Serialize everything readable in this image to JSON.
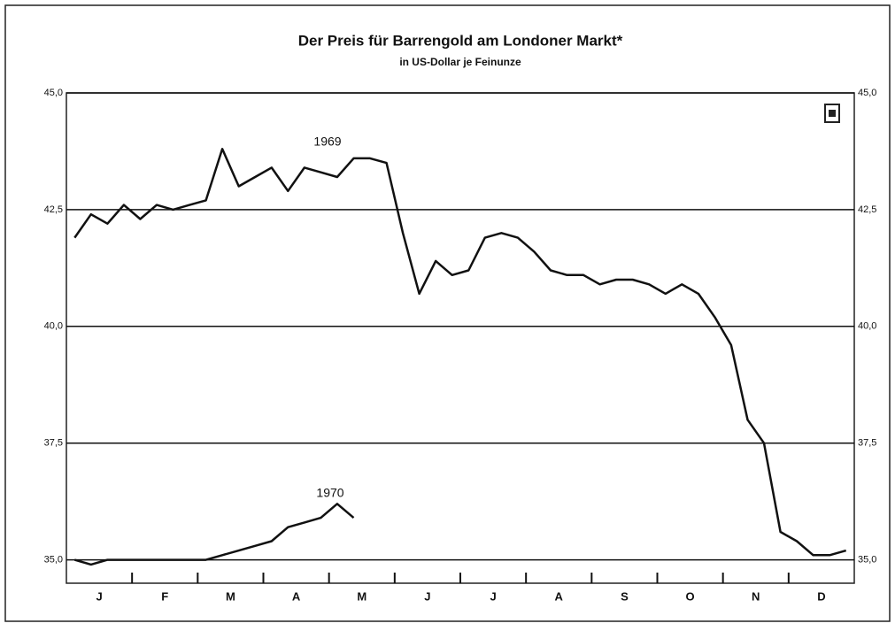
{
  "chart_data": {
    "type": "line",
    "title": "Der Preis für Barrengold am Londoner Markt*",
    "subtitle": "in US-Dollar je Feinunze",
    "annotations": [
      "1969",
      "1970"
    ],
    "categories": [
      "J",
      null,
      null,
      null,
      "F",
      null,
      null,
      null,
      "M",
      null,
      null,
      null,
      "A",
      null,
      null,
      null,
      "M",
      null,
      null,
      null,
      "J",
      null,
      null,
      null,
      "J",
      null,
      null,
      null,
      "A",
      null,
      null,
      null,
      "S",
      null,
      null,
      null,
      "O",
      null,
      null,
      null,
      "N",
      null,
      null,
      null,
      "D",
      null,
      null,
      null
    ],
    "series": [
      {
        "name": "1969",
        "color": "#111111",
        "values": [
          41.9,
          42.4,
          42.2,
          42.6,
          42.3,
          42.6,
          42.5,
          42.6,
          42.7,
          43.8,
          43.0,
          43.2,
          43.4,
          42.9,
          43.4,
          43.3,
          43.2,
          43.6,
          43.6,
          43.5,
          42.0,
          40.7,
          41.4,
          41.1,
          41.2,
          41.9,
          42.0,
          41.9,
          41.6,
          41.2,
          41.1,
          41.1,
          40.9,
          41.0,
          41.0,
          40.9,
          40.7,
          40.9,
          40.7,
          40.2,
          39.6,
          38.0,
          37.5,
          35.6,
          35.4,
          35.1,
          35.1,
          35.2
        ]
      },
      {
        "name": "1970",
        "color": "#111111",
        "values": [
          35.0,
          34.9,
          35.0,
          35.0,
          35.0,
          35.0,
          35.0,
          35.0,
          35.0,
          35.1,
          35.2,
          35.3,
          35.4,
          35.7,
          35.8,
          35.9,
          36.2,
          35.9,
          null,
          null,
          null,
          null,
          null,
          null,
          null,
          null,
          null,
          null,
          null,
          null,
          null,
          null,
          null,
          null,
          null,
          null,
          null,
          null,
          null,
          null,
          null,
          null,
          null,
          null,
          null,
          null,
          null,
          null
        ]
      }
    ],
    "ylim": [
      34.5,
      45
    ],
    "yticks": [
      {
        "value": 35,
        "label": "35,0"
      },
      {
        "value": 37.5,
        "label": "37,5"
      },
      {
        "value": 40,
        "label": "40,0"
      },
      {
        "value": 42.5,
        "label": "42,5"
      },
      {
        "value": 45,
        "label": "45,0"
      }
    ],
    "grid": true
  }
}
